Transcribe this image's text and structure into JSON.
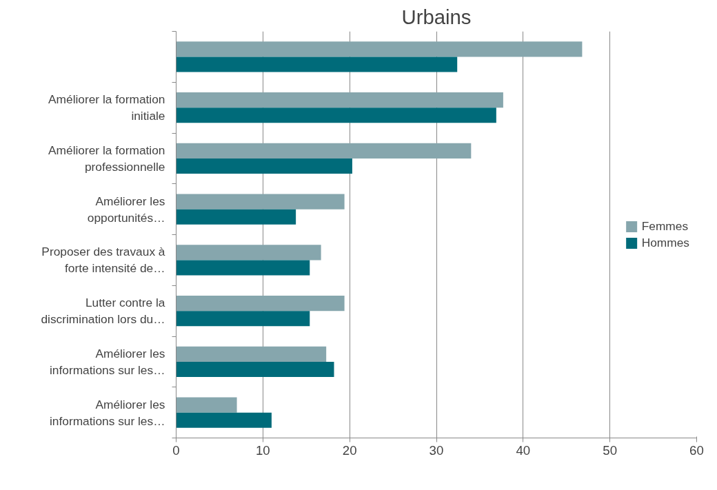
{
  "chart_data": {
    "type": "bar",
    "orientation": "horizontal",
    "title": "Urbains",
    "categories": [
      null,
      "Améliorer la formation\ninitiale",
      "Améliorer la formation\nprofessionnelle",
      "Améliorer les\nopportunités…",
      "Proposer des travaux à\nforte intensité de…",
      "Lutter contre la\ndiscrimination lors du…",
      "Améliorer les\ninformations sur les…",
      "Améliorer les\ninformations sur les…"
    ],
    "series": [
      {
        "name": "Femmes",
        "color": "#86a6ad",
        "values": [
          46.8,
          37.7,
          34.0,
          19.4,
          16.7,
          19.4,
          17.3,
          7.0
        ]
      },
      {
        "name": "Hommes",
        "color": "#006b7a",
        "values": [
          32.4,
          36.9,
          20.3,
          13.8,
          15.4,
          15.4,
          18.2,
          11.0
        ]
      }
    ],
    "xlim": [
      0,
      60
    ],
    "xticks": [
      0,
      10,
      20,
      30,
      40,
      50,
      60
    ],
    "grid": "x",
    "legend": "right"
  }
}
